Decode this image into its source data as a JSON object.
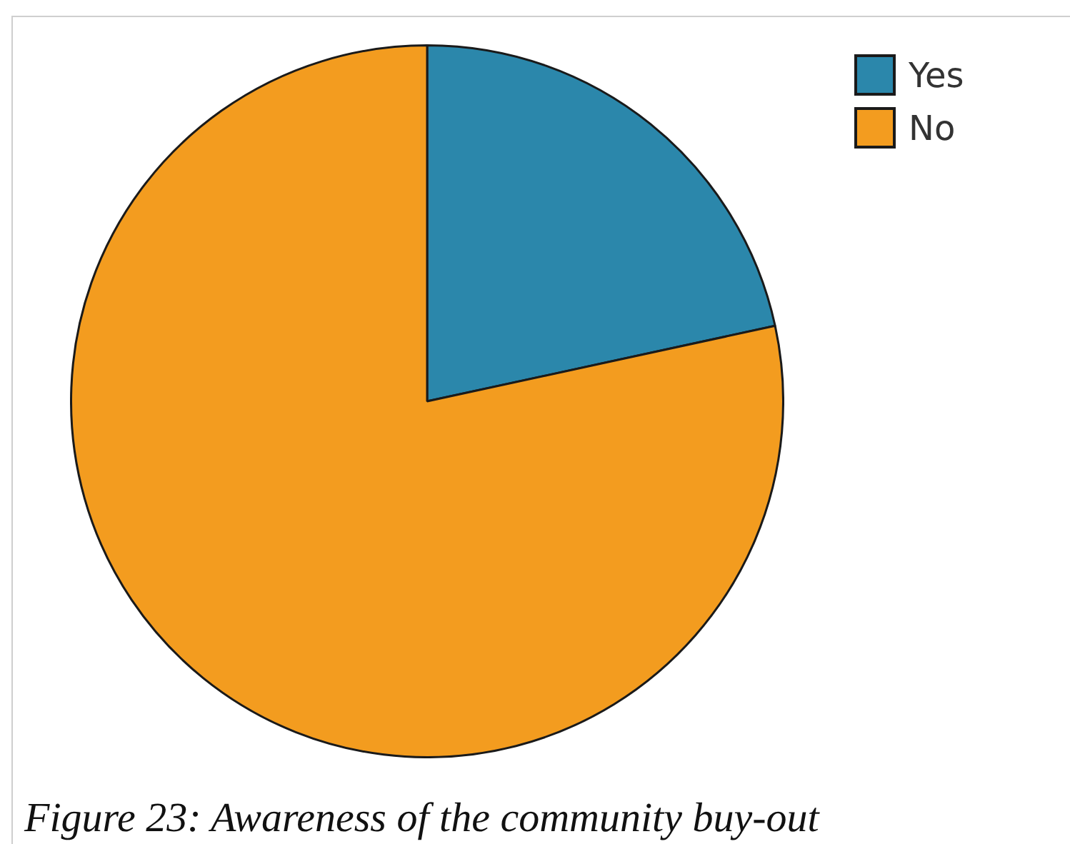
{
  "chart_data": {
    "type": "pie",
    "categories": [
      "Yes",
      "No"
    ],
    "values": [
      21.6,
      78.4
    ],
    "colors": [
      "#2b87ab",
      "#f39c1f"
    ],
    "legend": "top right",
    "annotations": [
      "Figure 23: Awareness of the community buy-out"
    ]
  }
}
